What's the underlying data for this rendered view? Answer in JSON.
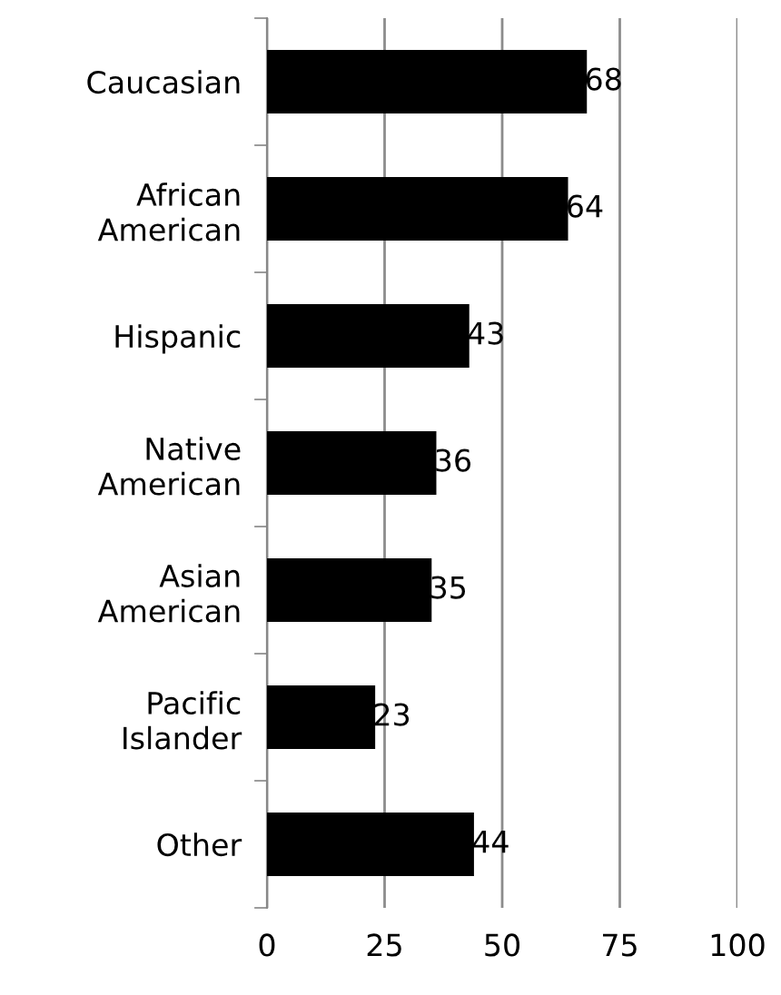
{
  "chart_data": {
    "type": "bar",
    "orientation": "horizontal",
    "categories": [
      "Caucasian",
      "African\nAmerican",
      "Hispanic",
      "Native\nAmerican",
      "Asian\nAmerican",
      "Pacific\nIslander",
      "Other"
    ],
    "values": [
      68,
      64,
      43,
      36,
      35,
      23,
      44
    ],
    "color": "#000000",
    "xlim": [
      0,
      100
    ],
    "xticks": [
      0,
      25,
      50,
      75,
      100
    ],
    "grid": "x",
    "data_labels": true
  }
}
